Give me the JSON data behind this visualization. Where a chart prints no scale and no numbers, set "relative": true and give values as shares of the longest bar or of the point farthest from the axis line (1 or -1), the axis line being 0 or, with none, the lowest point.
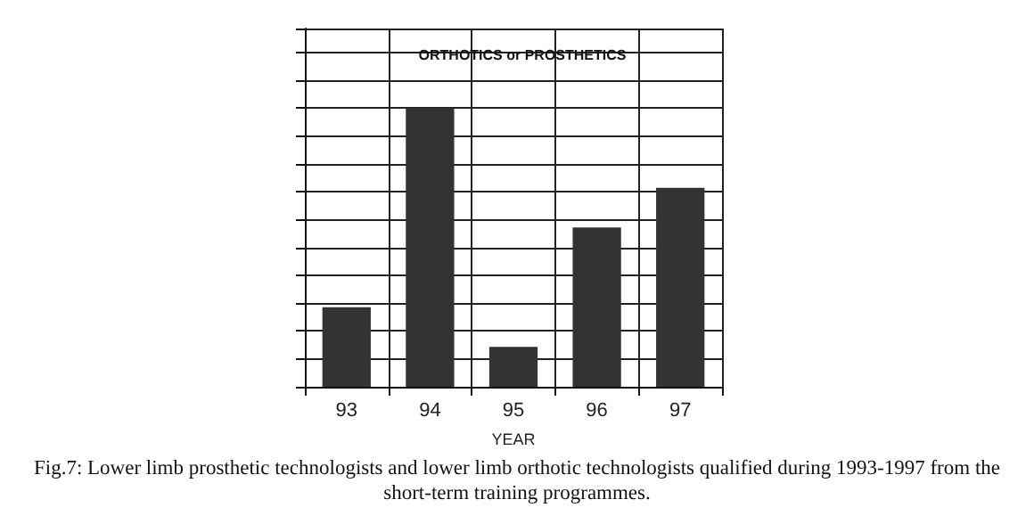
{
  "chart_data": {
    "type": "bar",
    "title": "ORTHOTICS or PROSTHETICS",
    "xlabel": "YEAR",
    "categories": [
      "93",
      "94",
      "95",
      "96",
      "97"
    ],
    "values": [
      0.2857,
      1,
      0.1429,
      0.5714,
      0.7143
    ],
    "color": "#333333",
    "relative": true,
    "grid": true,
    "annotations": [
      "Fig.7: Lower limb prosthetic technologists and lower limb orthotic technologists qualified during 1993-1997 from the short-term training programmes."
    ]
  }
}
